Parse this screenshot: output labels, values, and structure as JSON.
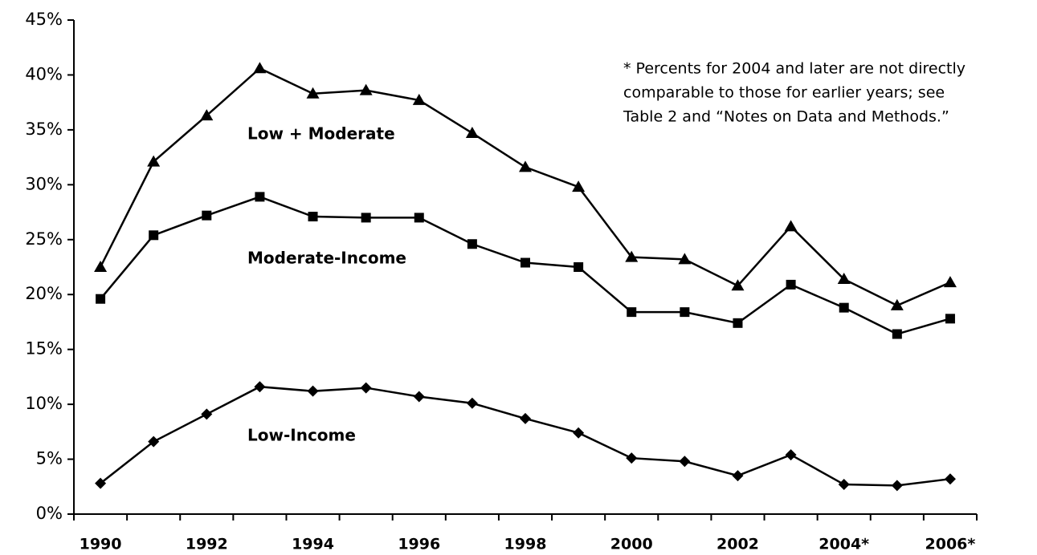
{
  "chart_data": {
    "type": "line",
    "categories": [
      "1990",
      null,
      "1992",
      null,
      "1994",
      null,
      "1996",
      null,
      "1998",
      null,
      "2000",
      null,
      "2002",
      null,
      "2004*",
      null,
      "2006*"
    ],
    "series": [
      {
        "name": "Low + Moderate",
        "color": "#000000",
        "marker": "triangle",
        "values": [
          22.5,
          32.1,
          36.3,
          40.6,
          38.3,
          38.6,
          37.7,
          34.7,
          31.6,
          29.8,
          23.4,
          23.2,
          20.8,
          26.2,
          21.4,
          19.0,
          21.1
        ]
      },
      {
        "name": "Moderate-Income",
        "color": "#000000",
        "marker": "square",
        "values": [
          19.6,
          25.4,
          27.2,
          28.9,
          27.1,
          27.0,
          27.0,
          24.6,
          22.9,
          22.5,
          18.4,
          18.4,
          17.4,
          20.9,
          18.8,
          16.4,
          17.8
        ]
      },
      {
        "name": "Low-Income",
        "color": "#000000",
        "marker": "diamond",
        "values": [
          2.8,
          6.6,
          9.1,
          11.6,
          11.2,
          11.5,
          10.7,
          10.1,
          8.7,
          7.4,
          5.1,
          4.8,
          3.5,
          5.4,
          2.7,
          2.6,
          3.2
        ]
      }
    ],
    "ylim": [
      0,
      45
    ],
    "yticks": [
      {
        "value": 0,
        "label": "0%"
      },
      {
        "value": 5,
        "label": "5%"
      },
      {
        "value": 10,
        "label": "10%"
      },
      {
        "value": 15,
        "label": "15%"
      },
      {
        "value": 20,
        "label": "20%"
      },
      {
        "value": 25,
        "label": "25%"
      },
      {
        "value": 30,
        "label": "30%"
      },
      {
        "value": 35,
        "label": "35%"
      },
      {
        "value": 40,
        "label": "40%"
      },
      {
        "value": 45,
        "label": "45%"
      }
    ],
    "grid": false,
    "annotation": [
      "* Percents for 2004 and later are not directly",
      "comparable to those for earlier years; see",
      "Table 2 and “Notes on Data and Methods.”"
    ]
  }
}
